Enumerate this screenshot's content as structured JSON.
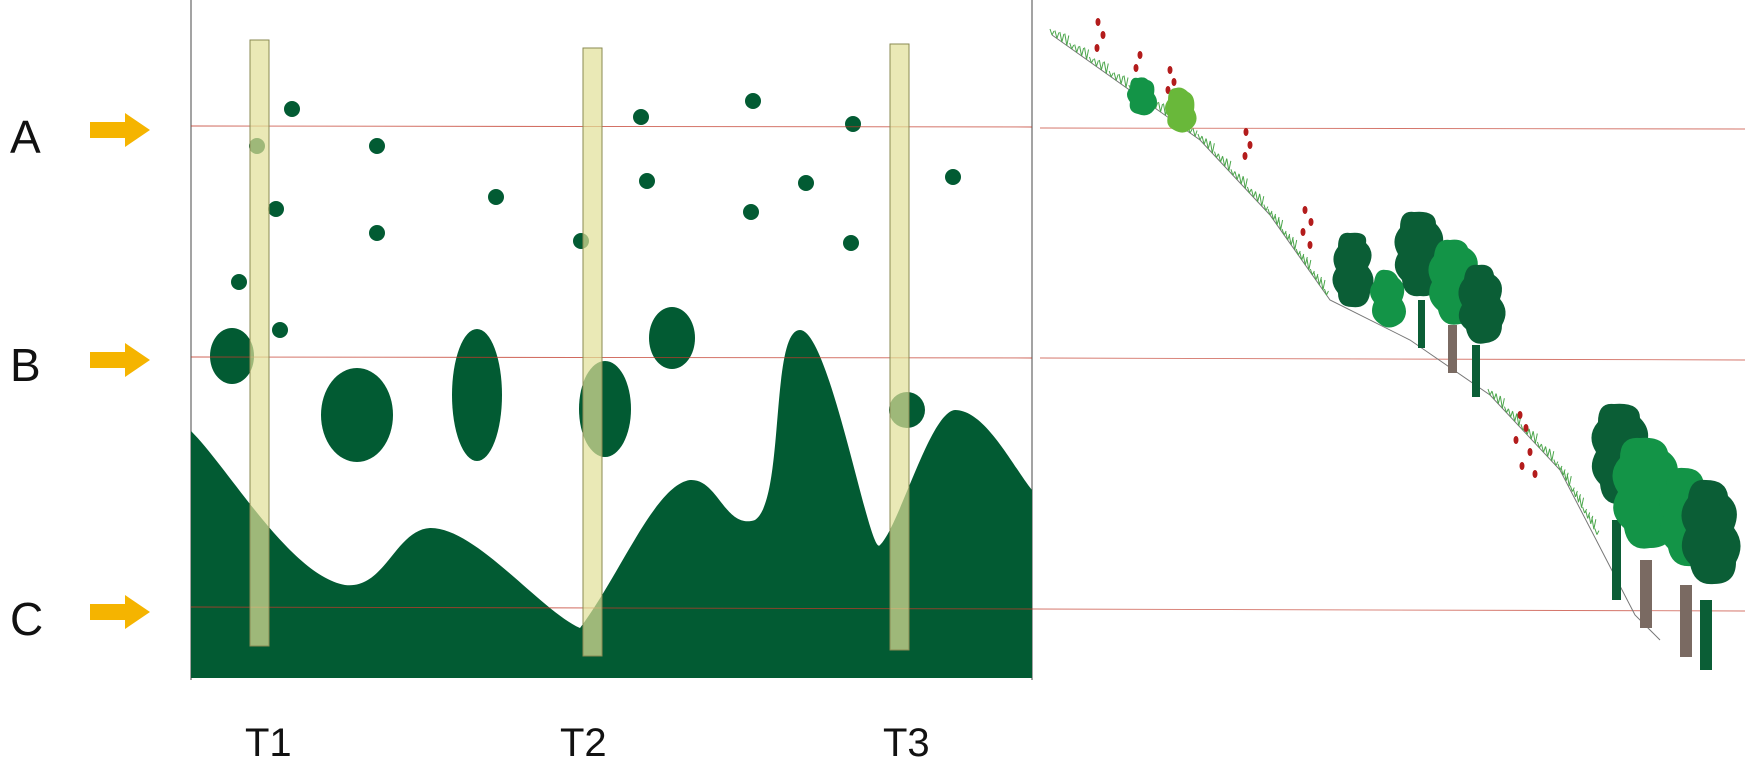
{
  "levels": [
    {
      "id": "A",
      "label": "A"
    },
    {
      "id": "B",
      "label": "B"
    },
    {
      "id": "C",
      "label": "C"
    }
  ],
  "transects": [
    {
      "id": "T1",
      "label": "T1"
    },
    {
      "id": "T2",
      "label": "T2"
    },
    {
      "id": "T3",
      "label": "T3"
    }
  ],
  "colors": {
    "canopy": "#025b33",
    "transect_fill": "#e1e097",
    "transect_stroke": "#8a8a52",
    "arrow": "#f5b400",
    "level_line": "#c23a2a",
    "frame": "#666666",
    "tree_dark": "#0b5e36",
    "tree_mid": "#139447",
    "tree_light": "#69b83a",
    "trunk": "#7a6a62",
    "flower": "#b31c1c",
    "grass": "#4ca64c"
  },
  "icons": [
    "arrow-right-icon",
    "tree-icon",
    "flower-icon",
    "grass-icon"
  ]
}
